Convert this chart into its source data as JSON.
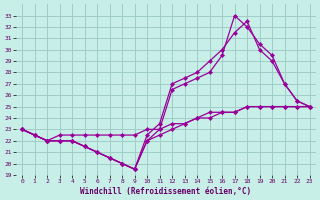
{
  "xlabel": "Windchill (Refroidissement éolien,°C)",
  "bg_color": "#c8eee8",
  "line_color": "#990099",
  "grid_color": "#a0ccc8",
  "xlim": [
    -0.5,
    23.5
  ],
  "ylim": [
    19,
    34
  ],
  "xticks": [
    0,
    1,
    2,
    3,
    4,
    5,
    6,
    7,
    8,
    9,
    10,
    11,
    12,
    13,
    14,
    15,
    16,
    17,
    18,
    19,
    20,
    21,
    22,
    23
  ],
  "yticks": [
    19,
    20,
    21,
    22,
    23,
    24,
    25,
    26,
    27,
    28,
    29,
    30,
    31,
    32,
    33
  ],
  "series": [
    [
      23.0,
      22.5,
      22.0,
      22.5,
      22.5,
      22.5,
      22.5,
      22.5,
      22.5,
      22.5,
      23.0,
      23.0,
      23.5,
      23.5,
      24.0,
      24.0,
      24.5,
      24.5,
      25.0,
      25.0,
      25.0,
      25.0,
      25.0,
      25.0
    ],
    [
      23.0,
      22.5,
      22.0,
      22.0,
      22.0,
      21.5,
      21.0,
      20.5,
      20.0,
      19.5,
      22.0,
      22.5,
      23.0,
      23.5,
      24.0,
      24.5,
      24.5,
      24.5,
      25.0,
      25.0,
      25.0,
      25.0,
      25.0,
      25.0
    ],
    [
      23.0,
      22.5,
      22.0,
      22.0,
      22.0,
      21.5,
      21.0,
      20.5,
      20.0,
      19.5,
      22.5,
      23.5,
      27.0,
      27.5,
      28.0,
      29.0,
      30.0,
      31.5,
      32.5,
      30.0,
      29.0,
      27.0,
      25.5,
      25.0
    ],
    [
      23.0,
      22.5,
      22.0,
      22.0,
      22.0,
      21.5,
      21.0,
      20.5,
      20.0,
      19.5,
      22.0,
      23.0,
      26.5,
      27.0,
      27.5,
      28.0,
      29.5,
      33.0,
      32.0,
      30.5,
      29.5,
      27.0,
      25.5,
      25.0
    ]
  ]
}
